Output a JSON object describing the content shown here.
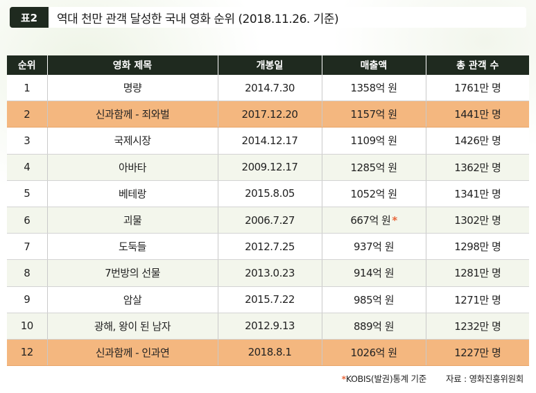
{
  "header": {
    "tag": "표2",
    "title": "역대 천만 관객 달성한 국내 영화 순위 (2018.11.26. 기준)"
  },
  "table": {
    "columns": [
      "순위",
      "영화 제목",
      "개봉일",
      "매출액",
      "총 관객 수"
    ],
    "rows": [
      {
        "rank": "1",
        "title": "명량",
        "date": "2014.7.30",
        "sales": "1358억 원",
        "star": "",
        "audience": "1761만 명",
        "style": "odd"
      },
      {
        "rank": "2",
        "title": "신과함께 - 죄와벌",
        "date": "2017.12.20",
        "sales": "1157억 원",
        "star": "",
        "audience": "1441만 명",
        "style": "highlight"
      },
      {
        "rank": "3",
        "title": "국제시장",
        "date": "2014.12.17",
        "sales": "1109억 원",
        "star": "",
        "audience": "1426만 명",
        "style": "odd"
      },
      {
        "rank": "4",
        "title": "아바타",
        "date": "2009.12.17",
        "sales": "1285억 원",
        "star": "",
        "audience": "1362만 명",
        "style": "even"
      },
      {
        "rank": "5",
        "title": "베테랑",
        "date": "2015.8.05",
        "sales": "1052억 원",
        "star": "",
        "audience": "1341만 명",
        "style": "odd"
      },
      {
        "rank": "6",
        "title": "괴물",
        "date": "2006.7.27",
        "sales": "667억 원",
        "star": "*",
        "audience": "1302만 명",
        "style": "even"
      },
      {
        "rank": "7",
        "title": "도둑들",
        "date": "2012.7.25",
        "sales": "937억 원",
        "star": "",
        "audience": "1298만 명",
        "style": "odd"
      },
      {
        "rank": "8",
        "title": "7번방의 선물",
        "date": "2013.0.23",
        "sales": "914억 원",
        "star": "",
        "audience": "1281만 명",
        "style": "even"
      },
      {
        "rank": "9",
        "title": "암살",
        "date": "2015.7.22",
        "sales": "985억 원",
        "star": "",
        "audience": "1271만 명",
        "style": "odd"
      },
      {
        "rank": "10",
        "title": "광해, 왕이 된 남자",
        "date": "2012.9.13",
        "sales": "889억 원",
        "star": "",
        "audience": "1232만 명",
        "style": "even"
      },
      {
        "rank": "12",
        "title": "신과함께 - 인과연",
        "date": "2018.8.1",
        "sales": "1026억 원",
        "star": "",
        "audience": "1227만 명",
        "style": "highlight"
      }
    ]
  },
  "footer": {
    "note_star": "*",
    "note": "KOBIS(발권)통계 기준",
    "source": "자료 : 영화진흥위원회"
  },
  "colors": {
    "header_bg": "#1f2a1f",
    "highlight": "#f4b77f",
    "stripe": "#f3f6ec",
    "star": "#e8663a"
  }
}
